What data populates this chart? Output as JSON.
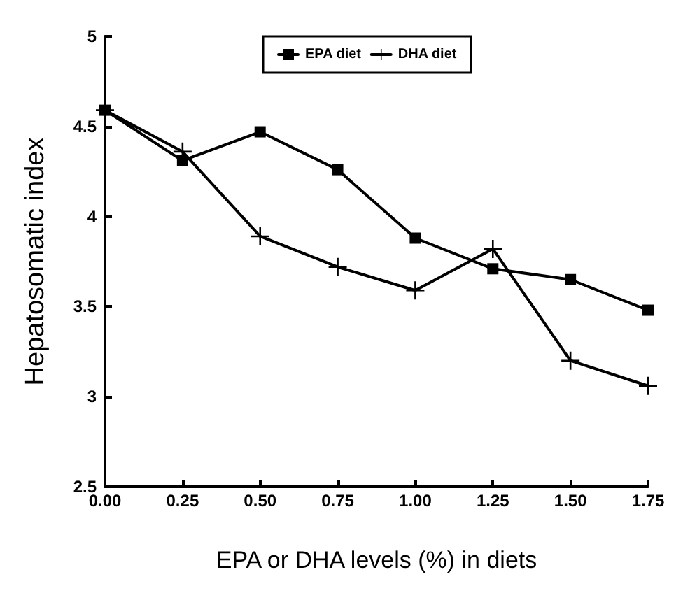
{
  "chart_data": {
    "type": "line",
    "xlabel": "EPA or DHA levels (%) in diets",
    "ylabel": "Hepatosomatic index",
    "x": [
      0,
      0.25,
      0.5,
      0.75,
      1,
      1.25,
      1.5,
      1.75
    ],
    "series": [
      {
        "name": "EPA diet",
        "color": "#000000",
        "marker": "square",
        "values": [
          4.59,
          4.31,
          4.47,
          4.26,
          3.88,
          3.71,
          3.65,
          3.48
        ]
      },
      {
        "name": "DHA diet",
        "color": "#000000",
        "marker": "cross",
        "values": [
          4.59,
          4.36,
          3.89,
          3.72,
          3.59,
          3.82,
          3.2,
          3.06
        ]
      }
    ],
    "xlim": [
      0,
      1.75
    ],
    "xticks": [
      {
        "value": 0,
        "label": "0.00"
      },
      {
        "value": 0.25,
        "label": "0.25"
      },
      {
        "value": 0.5,
        "label": "0.50"
      },
      {
        "value": 0.75,
        "label": "0.75"
      },
      {
        "value": 1,
        "label": "1.00"
      },
      {
        "value": 1.25,
        "label": "1.25"
      },
      {
        "value": 1.5,
        "label": "1.50"
      },
      {
        "value": 1.75,
        "label": "1.75"
      }
    ],
    "ylim": [
      2.5,
      5
    ],
    "yticks": [
      2.5,
      3,
      3.5,
      4,
      4.5,
      5
    ],
    "grid": false,
    "legend": "top",
    "line_style": "solid"
  }
}
